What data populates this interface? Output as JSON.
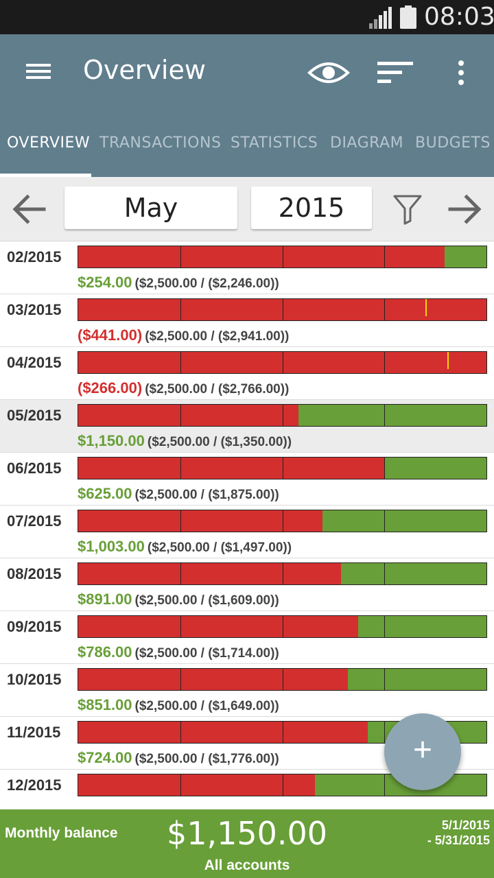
{
  "status": {
    "time": "08:03"
  },
  "appbar": {
    "title": "Overview",
    "icons": [
      "menu-icon",
      "eye-icon",
      "sort-icon",
      "more-vert-icon"
    ]
  },
  "tabs": [
    "OVERVIEW",
    "TRANSACTIONS",
    "STATISTICS",
    "DIAGRAM",
    "BUDGETS"
  ],
  "period": {
    "month": "May",
    "year": "2015"
  },
  "colors": {
    "appbar": "#617e8d",
    "expense": "#d32f2f",
    "income": "#689f38",
    "marker": "#f2d600"
  },
  "rows": [
    {
      "date": "02/2015",
      "balance": "$254.00",
      "detail": "($2,500.00 / ($2,246.00))",
      "negative": false,
      "expense_fraction": 0.898,
      "marker_fraction": null,
      "current": false
    },
    {
      "date": "03/2015",
      "balance": "($441.00)",
      "detail": "($2,500.00 / ($2,941.00))",
      "negative": true,
      "expense_fraction": 1.0,
      "marker_fraction": 0.85,
      "current": false
    },
    {
      "date": "04/2015",
      "balance": "($266.00)",
      "detail": "($2,500.00 / ($2,766.00))",
      "negative": true,
      "expense_fraction": 1.0,
      "marker_fraction": 0.904,
      "current": false
    },
    {
      "date": "05/2015",
      "balance": "$1,150.00",
      "detail": "($2,500.00 / ($1,350.00))",
      "negative": false,
      "expense_fraction": 0.54,
      "marker_fraction": null,
      "current": true
    },
    {
      "date": "06/2015",
      "balance": "$625.00",
      "detail": "($2,500.00 / ($1,875.00))",
      "negative": false,
      "expense_fraction": 0.75,
      "marker_fraction": null,
      "current": false
    },
    {
      "date": "07/2015",
      "balance": "$1,003.00",
      "detail": "($2,500.00 / ($1,497.00))",
      "negative": false,
      "expense_fraction": 0.599,
      "marker_fraction": null,
      "current": false
    },
    {
      "date": "08/2015",
      "balance": "$891.00",
      "detail": "($2,500.00 / ($1,609.00))",
      "negative": false,
      "expense_fraction": 0.644,
      "marker_fraction": null,
      "current": false
    },
    {
      "date": "09/2015",
      "balance": "$786.00",
      "detail": "($2,500.00 / ($1,714.00))",
      "negative": false,
      "expense_fraction": 0.686,
      "marker_fraction": null,
      "current": false
    },
    {
      "date": "10/2015",
      "balance": "$851.00",
      "detail": "($2,500.00 / ($1,649.00))",
      "negative": false,
      "expense_fraction": 0.66,
      "marker_fraction": null,
      "current": false
    },
    {
      "date": "11/2015",
      "balance": "$724.00",
      "detail": "($2,500.00 / ($1,776.00))",
      "negative": false,
      "expense_fraction": 0.71,
      "marker_fraction": null,
      "current": false
    },
    {
      "date": "12/2015",
      "balance": "",
      "detail": "",
      "negative": false,
      "expense_fraction": 0.58,
      "marker_fraction": null,
      "current": false
    }
  ],
  "fab": {
    "label": "+"
  },
  "footer": {
    "label": "Monthly balance",
    "amount": "$1,150.00",
    "accounts": "All accounts",
    "range_start": "5/1/2015",
    "range_end": "- 5/31/2015"
  }
}
